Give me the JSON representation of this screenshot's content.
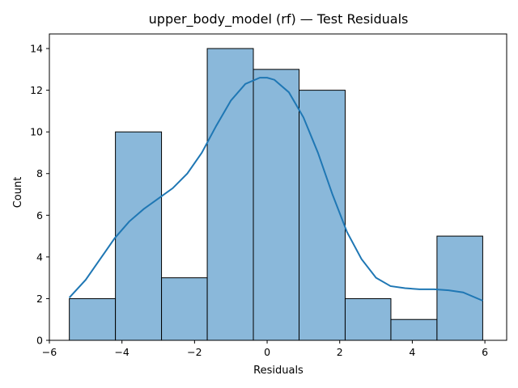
{
  "chart_data": {
    "type": "histogram",
    "title": "upper_body_model (rf) — Test Residuals",
    "xlabel": "Residuals",
    "ylabel": "Count",
    "xlim": [
      -6,
      6.6
    ],
    "ylim": [
      0,
      14.7
    ],
    "xticks": [
      -6,
      -4,
      -2,
      0,
      2,
      4,
      6
    ],
    "yticks": [
      0,
      2,
      4,
      6,
      8,
      10,
      12,
      14
    ],
    "grid": false,
    "bar_color": "#8ab8da",
    "bar_edge_color": "#000000",
    "kde_color": "#1f77b4",
    "bins": [
      {
        "x0": -5.45,
        "x1": -4.18,
        "count": 2
      },
      {
        "x0": -4.18,
        "x1": -2.91,
        "count": 10
      },
      {
        "x0": -2.91,
        "x1": -1.65,
        "count": 3
      },
      {
        "x0": -1.65,
        "x1": -0.38,
        "count": 14
      },
      {
        "x0": -0.38,
        "x1": 0.88,
        "count": 13
      },
      {
        "x0": 0.88,
        "x1": 2.15,
        "count": 12
      },
      {
        "x0": 2.15,
        "x1": 3.41,
        "count": 2
      },
      {
        "x0": 3.41,
        "x1": 4.68,
        "count": 1
      },
      {
        "x0": 4.68,
        "x1": 5.94,
        "count": 5
      }
    ],
    "kde": {
      "x": [
        -5.45,
        -5.0,
        -4.6,
        -4.2,
        -3.8,
        -3.4,
        -3.0,
        -2.6,
        -2.2,
        -1.8,
        -1.4,
        -1.0,
        -0.6,
        -0.2,
        0.0,
        0.2,
        0.6,
        1.0,
        1.4,
        1.8,
        2.2,
        2.6,
        3.0,
        3.4,
        3.8,
        4.2,
        4.6,
        5.0,
        5.4,
        5.94
      ],
      "y": [
        2.05,
        2.9,
        3.9,
        4.9,
        5.7,
        6.3,
        6.8,
        7.3,
        8.0,
        9.0,
        10.3,
        11.5,
        12.3,
        12.6,
        12.6,
        12.5,
        11.9,
        10.7,
        9.0,
        7.0,
        5.2,
        3.9,
        3.0,
        2.6,
        2.5,
        2.45,
        2.45,
        2.4,
        2.3,
        1.9
      ]
    }
  }
}
